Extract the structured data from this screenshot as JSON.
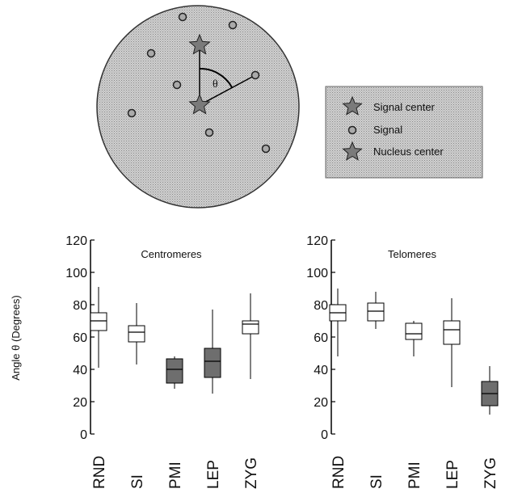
{
  "diagram": {
    "angle_label": "θ",
    "legend": [
      "Signal center",
      "Signal",
      "Nucleus center"
    ]
  },
  "y_label": "Angle θ (Degrees)",
  "chart_data": [
    {
      "type": "box",
      "title": "Centromeres",
      "categories": [
        "RND",
        "SI",
        "PMI",
        "LEP",
        "ZYG"
      ],
      "boxes": [
        {
          "min": 41,
          "q1": 64,
          "median": 70,
          "q3": 75,
          "max": 91,
          "color": "#ffffff"
        },
        {
          "min": 43,
          "q1": 57,
          "median": 63,
          "q3": 67,
          "max": 81,
          "color": "#ffffff"
        },
        {
          "min": 28,
          "q1": 31.5,
          "median": 40,
          "q3": 46.5,
          "max": 48,
          "color": "#6e6e6e"
        },
        {
          "min": 25,
          "q1": 35,
          "median": 45,
          "q3": 53,
          "max": 77,
          "color": "#6e6e6e"
        },
        {
          "min": 34,
          "q1": 62,
          "median": 68,
          "q3": 70,
          "max": 87,
          "color": "#ffffff"
        }
      ],
      "ylim": [
        0,
        120
      ],
      "yticks": [
        0,
        20,
        40,
        60,
        80,
        100,
        120
      ]
    },
    {
      "type": "box",
      "title": "Telomeres",
      "categories": [
        "RND",
        "SI",
        "PMI",
        "LEP",
        "ZYG"
      ],
      "boxes": [
        {
          "min": 48,
          "q1": 70,
          "median": 75,
          "q3": 80,
          "max": 90,
          "color": "#ffffff"
        },
        {
          "min": 65,
          "q1": 70,
          "median": 76,
          "q3": 81,
          "max": 88,
          "color": "#ffffff"
        },
        {
          "min": 48,
          "q1": 58.5,
          "median": 62,
          "q3": 68.5,
          "max": 70,
          "color": "#ffffff"
        },
        {
          "min": 29,
          "q1": 55.5,
          "median": 64.5,
          "q3": 70,
          "max": 84,
          "color": "#ffffff"
        },
        {
          "min": 12,
          "q1": 17.5,
          "median": 25,
          "q3": 32.5,
          "max": 42,
          "color": "#6e6e6e"
        }
      ],
      "ylim": [
        0,
        120
      ],
      "yticks": [
        0,
        20,
        40,
        60,
        80,
        100,
        120
      ]
    }
  ]
}
